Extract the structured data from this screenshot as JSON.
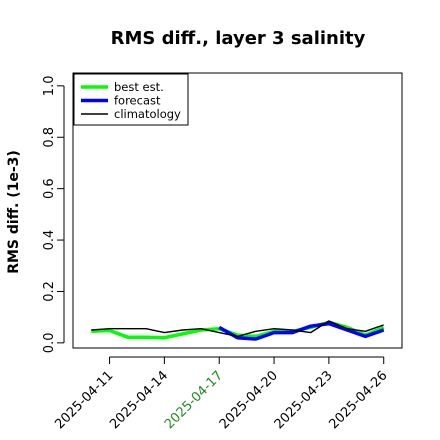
{
  "chart_data": {
    "type": "line",
    "title": "RMS diff., layer 3 salinity",
    "ylabel": "RMS diff. (1e-3)",
    "xlabel": "",
    "ylim": [
      -0.02,
      1.05
    ],
    "yticks": [
      0.0,
      0.2,
      0.4,
      0.6,
      0.8,
      1.0
    ],
    "ytick_labels": [
      "0.0",
      "0.2",
      "0.4",
      "0.6",
      "0.8",
      "1.0"
    ],
    "xlim": [
      "2025-04-09",
      "2025-04-27"
    ],
    "xticks": [
      "2025-04-11",
      "2025-04-14",
      "2025-04-17",
      "2025-04-20",
      "2025-04-23",
      "2025-04-26"
    ],
    "highlight_tick": "2025-04-17",
    "highlight_color": "#228B22",
    "grid": false,
    "legend_position": "top-left",
    "x": [
      "2025-04-10",
      "2025-04-11",
      "2025-04-12",
      "2025-04-13",
      "2025-04-14",
      "2025-04-15",
      "2025-04-16",
      "2025-04-17",
      "2025-04-18",
      "2025-04-19",
      "2025-04-20",
      "2025-04-21",
      "2025-04-22",
      "2025-04-23",
      "2025-04-24",
      "2025-04-25",
      "2025-04-26"
    ],
    "series": [
      {
        "name": "best est.",
        "color": "#00ff00",
        "width": 3.5,
        "values": [
          0.045,
          0.048,
          0.022,
          0.022,
          0.02,
          0.035,
          0.05,
          0.055,
          0.03,
          0.025,
          0.045,
          0.045,
          0.06,
          0.08,
          0.06,
          0.03,
          0.06
        ]
      },
      {
        "name": "forecast",
        "color": "#0000ff",
        "width": 3.5,
        "values": [
          null,
          null,
          null,
          null,
          null,
          null,
          null,
          0.06,
          0.02,
          0.015,
          0.04,
          0.04,
          0.065,
          0.075,
          0.05,
          0.025,
          0.05
        ]
      },
      {
        "name": "climatology",
        "color": "#000000",
        "width": 1.4,
        "values": [
          0.05,
          0.055,
          0.055,
          0.055,
          0.04,
          0.05,
          0.055,
          0.04,
          0.025,
          0.045,
          0.055,
          0.05,
          0.04,
          0.085,
          0.055,
          0.045,
          0.07
        ]
      }
    ]
  }
}
